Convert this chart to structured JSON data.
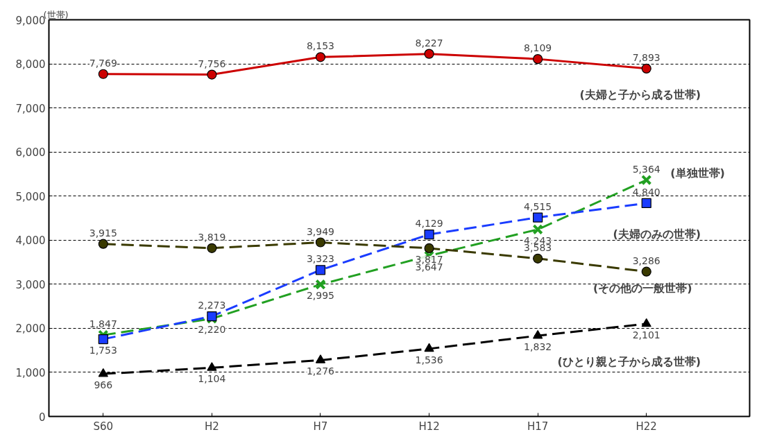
{
  "chart_data": {
    "type": "line",
    "ylabel": "(世帯)",
    "categories": [
      "S60",
      "H2",
      "H7",
      "H12",
      "H17",
      "H22"
    ],
    "series": [
      {
        "name": "(夫婦と子から成る世帯)",
        "color": "#cc0000",
        "marker": "circle",
        "line_style": "solid",
        "values": [
          7769,
          7756,
          8153,
          8227,
          8109,
          7893
        ],
        "value_labels": [
          "7,769",
          "7,756",
          "8,153",
          "8,227",
          "8,109",
          "7,893"
        ]
      },
      {
        "name": "(単独世帯)",
        "color": "#22a022",
        "marker": "cross",
        "line_style": "dashed",
        "values": [
          1847,
          2220,
          2995,
          3647,
          4243,
          5364
        ],
        "value_labels": [
          "1,847",
          "2,220",
          "2,995",
          "3,647",
          "4,243",
          "5,364"
        ]
      },
      {
        "name": "(夫婦のみの世帯)",
        "color": "#1a3cff",
        "marker": "square",
        "line_style": "dashed",
        "values": [
          1753,
          2273,
          3323,
          4129,
          4515,
          4840
        ],
        "value_labels": [
          "1,753",
          "2,273",
          "3,323",
          "4,129",
          "4,515",
          "4,840"
        ]
      },
      {
        "name": "(その他の一般世帯)",
        "color": "#3a3a00",
        "marker": "circle",
        "line_style": "dashed",
        "values": [
          3915,
          3819,
          3949,
          3817,
          3583,
          3286
        ],
        "value_labels": [
          "3,915",
          "3,819",
          "3,949",
          "3,817",
          "3,583",
          "3,286"
        ]
      },
      {
        "name": "(ひとり親と子から成る世帯)",
        "color": "#000000",
        "marker": "triangle",
        "line_style": "dashed",
        "values": [
          966,
          1104,
          1276,
          1536,
          1832,
          2101
        ],
        "value_labels": [
          "966",
          "1,104",
          "1,276",
          "1,536",
          "1,832",
          "2,101"
        ]
      }
    ],
    "ylim": [
      0,
      9000
    ],
    "yticks": [
      {
        "value": 0,
        "label": "0"
      },
      {
        "value": 1000,
        "label": "1,000"
      },
      {
        "value": 2000,
        "label": "2,000"
      },
      {
        "value": 3000,
        "label": "3,000"
      },
      {
        "value": 4000,
        "label": "4,000"
      },
      {
        "value": 5000,
        "label": "5,000"
      },
      {
        "value": 6000,
        "label": "6,000"
      },
      {
        "value": 7000,
        "label": "7,000"
      },
      {
        "value": 8000,
        "label": "8,000"
      },
      {
        "value": 9000,
        "label": "9,000"
      }
    ],
    "grid": "y",
    "legend": false
  }
}
